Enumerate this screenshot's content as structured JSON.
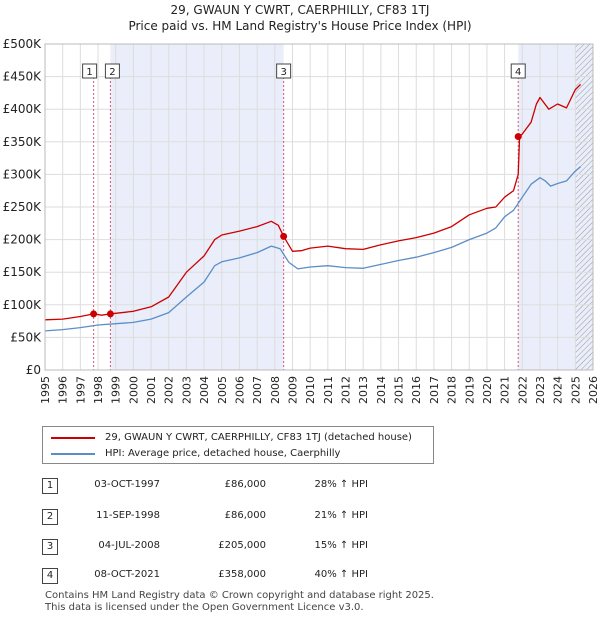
{
  "title_line1": "29, GWAUN Y CWRT, CAERPHILLY, CF83 1TJ",
  "title_line2": "Price paid vs. HM Land Registry's House Price Index (HPI)",
  "colors": {
    "property": "#cc0000",
    "hpi": "#5b8ec7",
    "shade": "#e9eefa",
    "grid": "#dddddd",
    "marker_line": "#dd5577"
  },
  "legend": {
    "property_label": "29, GWAUN Y CWRT, CAERPHILLY, CF83 1TJ (detached house)",
    "hpi_label": "HPI: Average price, detached house, Caerphilly"
  },
  "sales": [
    {
      "num": "1",
      "date": "03-OCT-1997",
      "price": "£86,000",
      "pct": "28% ↑ HPI"
    },
    {
      "num": "2",
      "date": "11-SEP-1998",
      "price": "£86,000",
      "pct": "21% ↑ HPI"
    },
    {
      "num": "3",
      "date": "04-JUL-2008",
      "price": "£205,000",
      "pct": "15% ↑ HPI"
    },
    {
      "num": "4",
      "date": "08-OCT-2021",
      "price": "£358,000",
      "pct": "40% ↑ HPI"
    }
  ],
  "footer": {
    "line1": "Contains HM Land Registry data © Crown copyright and database right 2025.",
    "line2": "This data is licensed under the Open Government Licence v3.0."
  },
  "chart_data": {
    "type": "line",
    "title": "Price paid vs. HM Land Registry's House Price Index (HPI)",
    "xlim": [
      1995,
      2026
    ],
    "ylim": [
      0,
      500000
    ],
    "x_ticks": [
      1995,
      1996,
      1997,
      1998,
      1999,
      2000,
      2001,
      2002,
      2003,
      2004,
      2005,
      2006,
      2007,
      2008,
      2009,
      2010,
      2011,
      2012,
      2013,
      2014,
      2015,
      2016,
      2017,
      2018,
      2019,
      2020,
      2021,
      2022,
      2023,
      2024,
      2025,
      2026
    ],
    "y_ticks": [
      {
        "value": 0,
        "label": "£0"
      },
      {
        "value": 50000,
        "label": "£50K"
      },
      {
        "value": 100000,
        "label": "£100K"
      },
      {
        "value": 150000,
        "label": "£150K"
      },
      {
        "value": 200000,
        "label": "£200K"
      },
      {
        "value": 250000,
        "label": "£250K"
      },
      {
        "value": 300000,
        "label": "£300K"
      },
      {
        "value": 350000,
        "label": "£350K"
      },
      {
        "value": 400000,
        "label": "£400K"
      },
      {
        "value": 450000,
        "label": "£450K"
      },
      {
        "value": 500000,
        "label": "£500K"
      }
    ],
    "shaded_ranges": [
      [
        1998.7,
        2008.5
      ],
      [
        2021.77,
        2026
      ]
    ],
    "hatched_range": [
      2025.0,
      2026
    ],
    "sale_markers": [
      {
        "label": "1",
        "x": 1997.75,
        "y": 86000
      },
      {
        "label": "2",
        "x": 1998.7,
        "y": 86000
      },
      {
        "label": "3",
        "x": 2008.5,
        "y": 205000
      },
      {
        "label": "4",
        "x": 2021.77,
        "y": 358000
      }
    ],
    "series": [
      {
        "name": "29, GWAUN Y CWRT, CAERPHILLY, CF83 1TJ (detached house)",
        "x": [
          1995,
          1996,
          1997,
          1997.75,
          1998.2,
          1998.7,
          1999,
          2000,
          2001,
          2002,
          2003,
          2004,
          2004.6,
          2005,
          2006,
          2007,
          2007.8,
          2008.2,
          2008.5,
          2009,
          2009.5,
          2010,
          2011,
          2012,
          2013,
          2014,
          2015,
          2016,
          2017,
          2018,
          2019,
          2020,
          2020.5,
          2021,
          2021.5,
          2021.77,
          2021.85,
          2022,
          2022.5,
          2022.8,
          2023,
          2023.5,
          2024,
          2024.5,
          2025.0,
          2025.3
        ],
        "values": [
          77000,
          78000,
          82000,
          86000,
          84000,
          86000,
          87000,
          90000,
          97000,
          112000,
          150000,
          175000,
          200000,
          207000,
          213000,
          220000,
          228000,
          222000,
          205000,
          182000,
          183000,
          187000,
          190000,
          186000,
          185000,
          192000,
          198000,
          203000,
          210000,
          220000,
          238000,
          248000,
          250000,
          265000,
          275000,
          300000,
          358000,
          362000,
          380000,
          408000,
          418000,
          400000,
          408000,
          402000,
          430000,
          438000
        ]
      },
      {
        "name": "HPI: Average price, detached house, Caerphilly",
        "x": [
          1995,
          1996,
          1997,
          1998,
          1999,
          2000,
          2001,
          2002,
          2003,
          2004,
          2004.6,
          2005,
          2006,
          2007,
          2007.8,
          2008.3,
          2008.8,
          2009.3,
          2010,
          2011,
          2012,
          2013,
          2014,
          2015,
          2016,
          2017,
          2018,
          2019,
          2020,
          2020.5,
          2021,
          2021.5,
          2022,
          2022.5,
          2023,
          2023.3,
          2023.6,
          2024,
          2024.5,
          2025.0,
          2025.3
        ],
        "values": [
          60000,
          62000,
          65000,
          69000,
          71000,
          73000,
          78000,
          88000,
          112000,
          135000,
          160000,
          166000,
          172000,
          180000,
          190000,
          186000,
          165000,
          155000,
          158000,
          160000,
          157000,
          156000,
          162000,
          168000,
          173000,
          180000,
          188000,
          200000,
          210000,
          218000,
          235000,
          245000,
          265000,
          285000,
          295000,
          290000,
          282000,
          286000,
          290000,
          305000,
          312000
        ]
      }
    ]
  }
}
